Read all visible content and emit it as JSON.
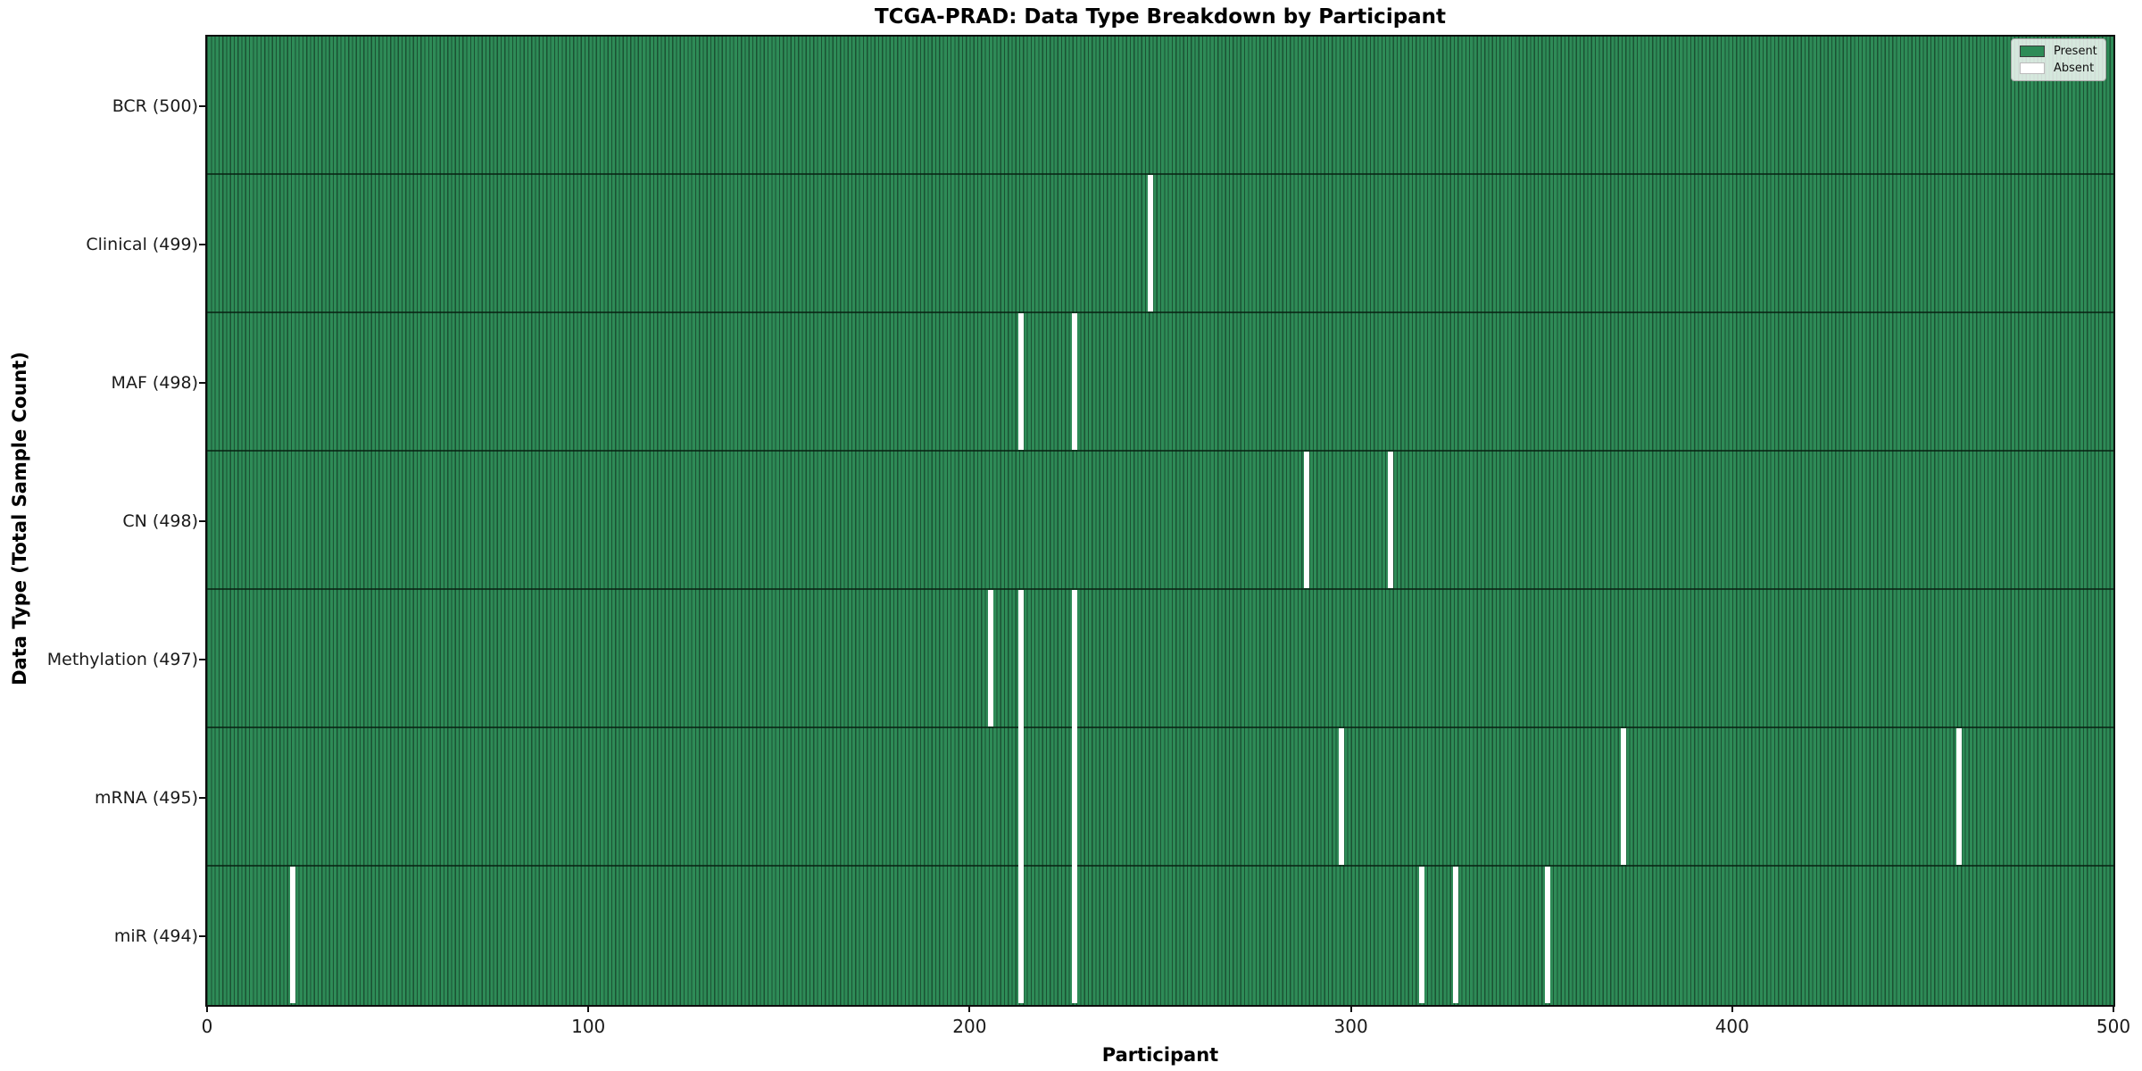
{
  "chart_data": {
    "type": "heatmap",
    "title": "TCGA-PRAD: Data Type Breakdown by Participant",
    "xlabel": "Participant",
    "ylabel": "Data Type (Total Sample Count)",
    "x_range": [
      0,
      500
    ],
    "x_ticks": [
      0,
      100,
      200,
      300,
      400,
      500
    ],
    "n_participants": 500,
    "grid": false,
    "colors": {
      "present": "#2e8b57",
      "absent": "#ffffff",
      "cell_edge": "#1b5233",
      "row_separator": "#0d2a1a",
      "frame": "#0d0d0d"
    },
    "legend": {
      "position": "upper-right",
      "entries": [
        {
          "label": "Present",
          "color": "#2e8b57"
        },
        {
          "label": "Absent",
          "color": "#ffffff"
        }
      ]
    },
    "rows": [
      {
        "name": "BCR",
        "label": "BCR (500)",
        "total": 500,
        "absent_participants": []
      },
      {
        "name": "Clinical",
        "label": "Clinical (499)",
        "total": 499,
        "absent_participants": [
          247
        ]
      },
      {
        "name": "MAF",
        "label": "MAF (498)",
        "total": 498,
        "absent_participants": [
          213,
          227
        ]
      },
      {
        "name": "CN",
        "label": "CN (498)",
        "total": 498,
        "absent_participants": [
          288,
          310
        ]
      },
      {
        "name": "Methylation",
        "label": "Methylation (497)",
        "total": 497,
        "absent_participants": [
          205,
          213,
          227
        ]
      },
      {
        "name": "mRNA",
        "label": "mRNA (495)",
        "total": 495,
        "absent_participants": [
          213,
          227,
          297,
          371,
          459
        ]
      },
      {
        "name": "miR",
        "label": "miR (494)",
        "total": 494,
        "absent_participants": [
          22,
          213,
          227,
          318,
          327,
          351
        ]
      }
    ]
  }
}
